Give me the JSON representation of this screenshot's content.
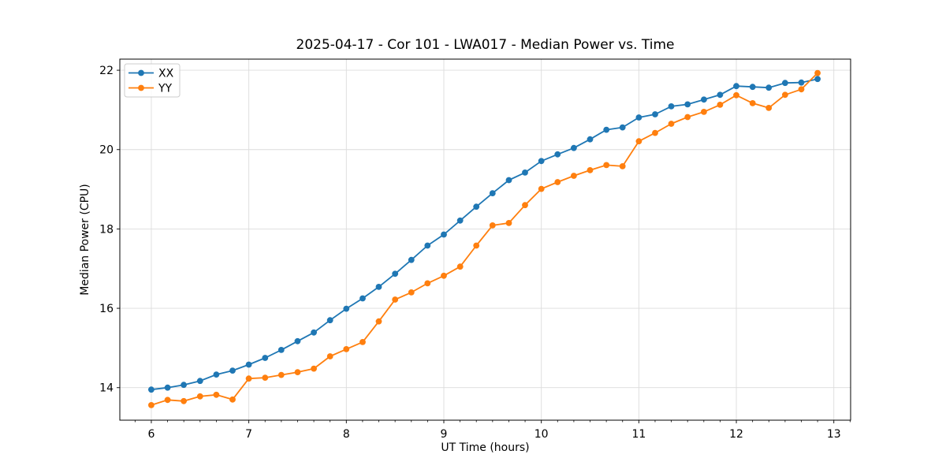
{
  "chart_data": {
    "type": "line",
    "title": "2025-04-17 - Cor 101 - LWA017 - Median Power vs. Time",
    "xlabel": "UT Time (hours)",
    "ylabel": "Median Power (CPU)",
    "xlim": [
      5.677,
      13.172
    ],
    "ylim": [
      13.18,
      22.28
    ],
    "xticks": [
      6,
      7,
      8,
      9,
      10,
      11,
      12,
      13
    ],
    "yticks": [
      14,
      16,
      18,
      20,
      22
    ],
    "x_minor_step_hours": 0.1667,
    "grid": true,
    "legend_position": "upper left",
    "x": [
      6.0,
      6.167,
      6.333,
      6.5,
      6.667,
      6.833,
      7.0,
      7.167,
      7.333,
      7.5,
      7.667,
      7.833,
      8.0,
      8.167,
      8.333,
      8.5,
      8.667,
      8.833,
      9.0,
      9.167,
      9.333,
      9.5,
      9.667,
      9.833,
      10.0,
      10.167,
      10.333,
      10.5,
      10.667,
      10.833,
      11.0,
      11.167,
      11.333,
      11.5,
      11.667,
      11.833,
      12.0,
      12.167,
      12.333,
      12.5,
      12.667,
      12.833
    ],
    "series": [
      {
        "name": "XX",
        "color": "#1f77b4",
        "values": [
          13.95,
          14.0,
          14.07,
          14.17,
          14.33,
          14.43,
          14.58,
          14.75,
          14.95,
          15.17,
          15.39,
          15.7,
          15.99,
          16.25,
          16.54,
          16.87,
          17.22,
          17.58,
          17.86,
          18.21,
          18.56,
          18.9,
          19.23,
          19.42,
          19.71,
          19.88,
          20.04,
          20.26,
          20.5,
          20.56,
          20.81,
          20.89,
          21.09,
          21.14,
          21.26,
          21.38,
          21.6,
          21.58,
          21.56,
          21.68,
          21.69,
          21.78
        ]
      },
      {
        "name": "YY",
        "color": "#ff7f0e",
        "values": [
          13.56,
          13.69,
          13.66,
          13.78,
          13.82,
          13.7,
          14.23,
          14.25,
          14.32,
          14.39,
          14.48,
          14.79,
          14.97,
          15.15,
          15.67,
          16.22,
          16.4,
          16.63,
          16.82,
          17.05,
          17.58,
          18.09,
          18.15,
          18.6,
          19.01,
          19.18,
          19.34,
          19.48,
          19.61,
          19.58,
          20.21,
          20.42,
          20.65,
          20.82,
          20.95,
          21.13,
          21.37,
          21.17,
          21.05,
          21.38,
          21.52,
          21.93
        ]
      }
    ]
  },
  "style": {
    "background": "#ffffff",
    "spine_color": "#000000",
    "grid_color": "#dcdcdc",
    "tick_color": "#000000",
    "legend_border": "#cccccc",
    "legend_background": "rgba(255,255,255,0.85)"
  }
}
